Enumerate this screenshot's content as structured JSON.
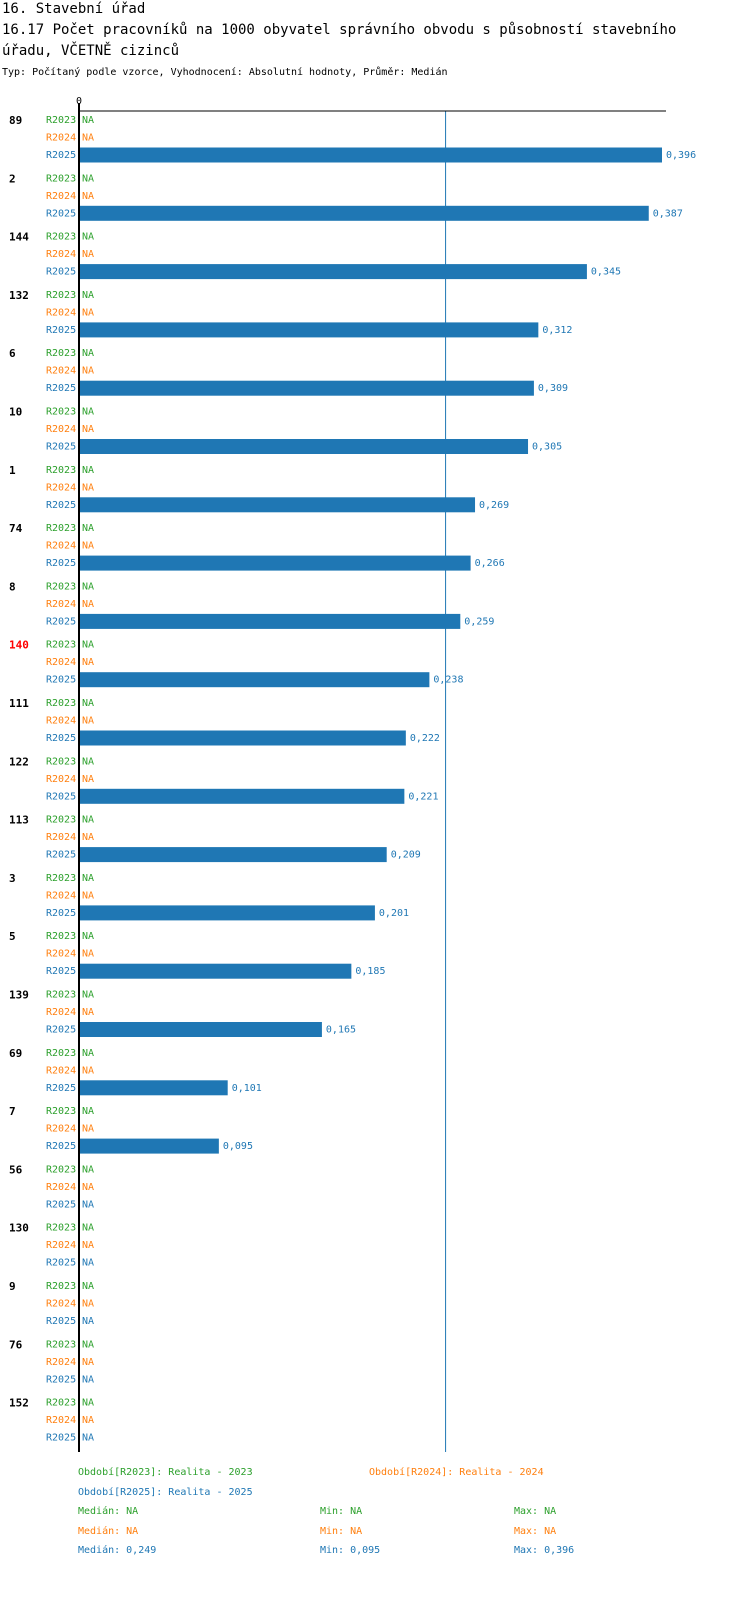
{
  "header": {
    "section_title": "16. Stavební úřad",
    "chart_title": "16.17 Počet pracovníků na 1000 obyvatel správního obvodu s působností stavebního úřadu, VČETNĚ cizinců",
    "subtitle": "Typ: Počítaný podle vzorce, Vyhodnocení: Absolutní hodnoty, Průměr: Medián"
  },
  "colors": {
    "R2023": "#2ca02c",
    "R2024": "#ff7f0e",
    "R2025": "#1f77b4",
    "highlight": "#ff0000",
    "axis": "#000000",
    "median_line": "#1f77b4"
  },
  "chart_data": {
    "type": "bar",
    "orientation": "horizontal",
    "axis_zero_label": "0",
    "xlim": [
      0,
      0.396
    ],
    "median_line_value": 0.249,
    "na_label": "NA",
    "highlight_category": "140",
    "series_names": [
      "R2023",
      "R2024",
      "R2025"
    ],
    "categories": [
      "89",
      "2",
      "144",
      "132",
      "6",
      "10",
      "1",
      "74",
      "8",
      "140",
      "111",
      "122",
      "113",
      "3",
      "5",
      "139",
      "69",
      "7",
      "56",
      "130",
      "9",
      "76",
      "152"
    ],
    "series": [
      {
        "name": "R2023",
        "values": [
          null,
          null,
          null,
          null,
          null,
          null,
          null,
          null,
          null,
          null,
          null,
          null,
          null,
          null,
          null,
          null,
          null,
          null,
          null,
          null,
          null,
          null,
          null
        ]
      },
      {
        "name": "R2024",
        "values": [
          null,
          null,
          null,
          null,
          null,
          null,
          null,
          null,
          null,
          null,
          null,
          null,
          null,
          null,
          null,
          null,
          null,
          null,
          null,
          null,
          null,
          null,
          null
        ]
      },
      {
        "name": "R2025",
        "values": [
          0.396,
          0.387,
          0.345,
          0.312,
          0.309,
          0.305,
          0.269,
          0.266,
          0.259,
          0.238,
          0.222,
          0.221,
          0.209,
          0.201,
          0.185,
          0.165,
          0.101,
          0.095,
          null,
          null,
          null,
          null,
          null
        ]
      }
    ]
  },
  "legend": {
    "period_2023": "Období[R2023]: Realita - 2023",
    "period_2024": "Období[R2024]: Realita - 2024",
    "period_2025": "Období[R2025]: Realita - 2025",
    "stats": [
      {
        "median": "Medián: NA",
        "min": "Min: NA",
        "max": "Max: NA"
      },
      {
        "median": "Medián: NA",
        "min": "Min: NA",
        "max": "Max: NA"
      },
      {
        "median": "Medián: 0,249",
        "min": "Min: 0,095",
        "max": "Max: 0,396"
      }
    ]
  }
}
